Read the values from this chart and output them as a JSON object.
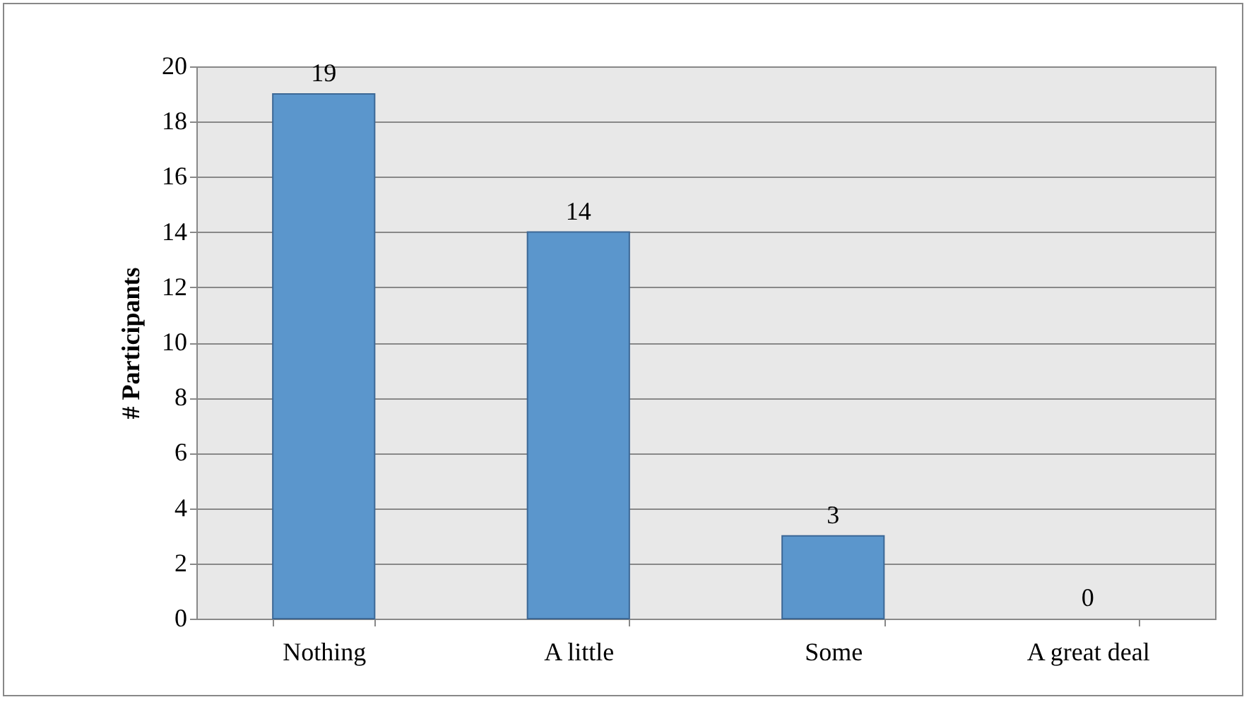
{
  "chart_data": {
    "type": "bar",
    "ylabel": "# Participants",
    "categories": [
      "Nothing",
      "A little",
      "Some",
      "A great deal"
    ],
    "values": [
      19,
      14,
      3,
      0
    ],
    "color": "#5b96cc",
    "ylim": [
      0,
      20
    ],
    "yticks": [
      0,
      2,
      4,
      6,
      8,
      10,
      12,
      14,
      16,
      18,
      20
    ],
    "grid": "y",
    "data_labels": true
  }
}
